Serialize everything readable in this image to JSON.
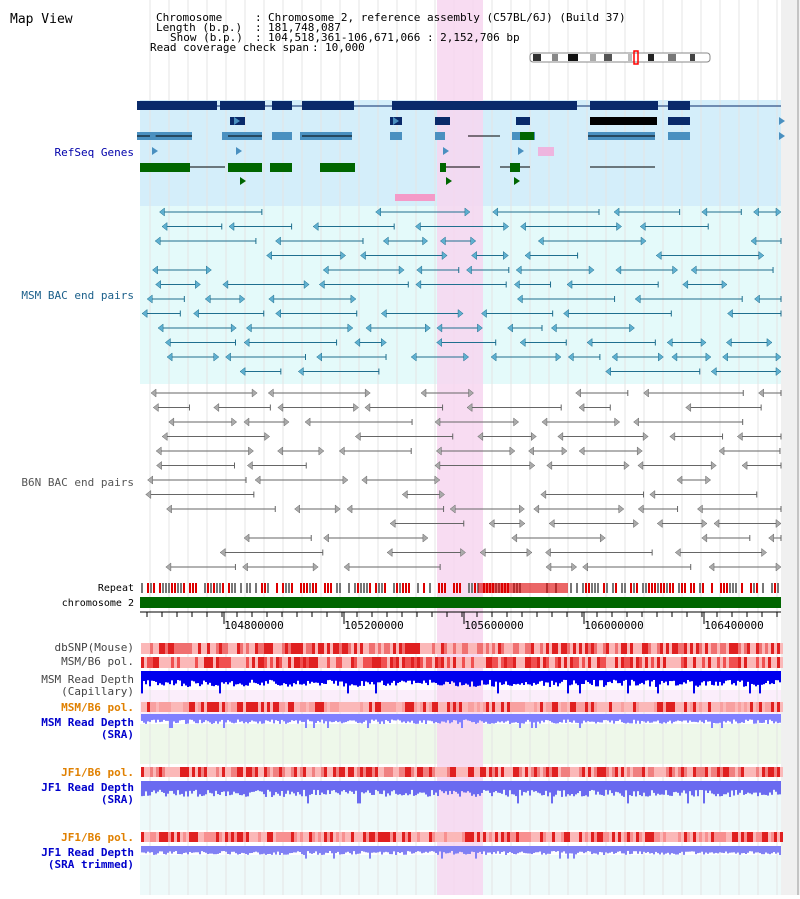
{
  "view_title": "Map View",
  "info": {
    "chromosome_label": "Chromosome",
    "chromosome_value": "Chromosome 2, reference assembly (C57BL/6J) (Build 37)",
    "length_label": "Length (b.p.)",
    "length_value": "181,748,087",
    "show_label": "Show (b.p.)",
    "show_value": "104,518,361-106,671,066 : 2,152,706 bp",
    "coverage_label": "Read coverage check span",
    "coverage_value": "10,000"
  },
  "tracks": {
    "refseq": "RefSeq Genes",
    "msm_bac": "MSM BAC end pairs",
    "b6n_bac": "B6N BAC end pairs",
    "repeat": "Repeat",
    "chromosome": "chromosome 2",
    "dbsnp": "dbSNP(Mouse)",
    "msm_b6_pol_1": "MSM/B6 pol.",
    "msm_depth_cap_1": "MSM Read Depth",
    "msm_depth_cap_2": "(Capillary)",
    "msm_b6_pol_2": "MSM/B6 pol.",
    "msm_depth_sra_1": "MSM Read Depth",
    "msm_depth_sra_2": "(SRA)",
    "jf1_pol_1": "JF1/B6 pol.",
    "jf1_depth_sra_1": "JF1 Read Depth",
    "jf1_depth_sra_2": "(SRA)",
    "jf1_pol_2": "JF1/B6 pol.",
    "jf1_depth_trim_1": "JF1 Read Depth",
    "jf1_depth_trim_2": "(SRA trimmed)"
  },
  "axis_ticks": [
    "104800000",
    "105200000",
    "105600000",
    "106000000",
    "106400000"
  ],
  "colors": {
    "refseq_label": "#0000aa",
    "msm_label": "#1a5f8a",
    "b6n_label": "#555555",
    "sra_label": "#0000cc",
    "pol_label": "#e08000",
    "highlight": "#f7d6f0",
    "refseq_bg": "#d4eefa",
    "msm_bg": "#e4fafa",
    "chromosome": "#006600",
    "depth_blue": "#0000ee",
    "depth_light": "#7777ff"
  }
}
